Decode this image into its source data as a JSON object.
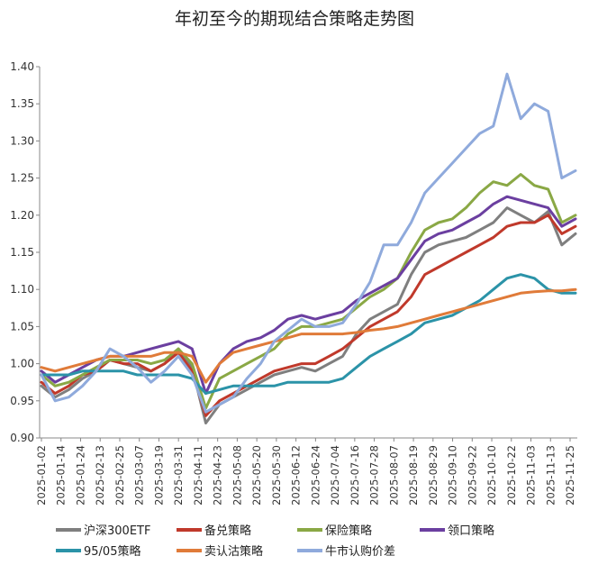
{
  "chart_data": {
    "type": "line",
    "title": "年初至今的期现结合策略走势图",
    "xlabel": "",
    "ylabel": "",
    "ylim": [
      0.9,
      1.4
    ],
    "yticks": [
      "0.90",
      "0.95",
      "1.00",
      "1.05",
      "1.10",
      "1.15",
      "1.20",
      "1.25",
      "1.30",
      "1.35",
      "1.40"
    ],
    "xticks": [
      "2025-01-02",
      "2025-01-14",
      "2025-01-24",
      "2025-02-13",
      "2025-02-25",
      "2025-03-07",
      "2025-03-19",
      "2025-03-31",
      "2025-04-11",
      "2025-04-23",
      "2025-05-08",
      "2025-05-20",
      "2025-05-30",
      "2025-06-12",
      "2025-06-24",
      "2025-07-04",
      "2025-07-16",
      "2025-07-28",
      "2025-08-07",
      "2025-08-19",
      "2025-08-29",
      "2025-09-10",
      "2025-09-22",
      "2025-10-10",
      "2025-10-22",
      "2025-11-03",
      "2025-11-13",
      "2025-11-25"
    ],
    "grid": false,
    "legend_position": "bottom",
    "series": [
      {
        "name": "沪深300ETF",
        "color": "#7f7f7f",
        "values": [
          0.97,
          0.955,
          0.965,
          0.98,
          0.99,
          1.005,
          1.0,
          0.995,
          0.99,
          1.0,
          1.02,
          0.995,
          0.92,
          0.945,
          0.955,
          0.965,
          0.975,
          0.985,
          0.99,
          0.995,
          0.99,
          1.0,
          1.01,
          1.04,
          1.06,
          1.07,
          1.08,
          1.12,
          1.15,
          1.16,
          1.165,
          1.17,
          1.18,
          1.19,
          1.21,
          1.2,
          1.19,
          1.205,
          1.16,
          1.175
        ]
      },
      {
        "name": "备兑策略",
        "color": "#c0392b",
        "values": [
          0.975,
          0.96,
          0.97,
          0.985,
          0.99,
          1.005,
          1.0,
          1.0,
          0.99,
          1.0,
          1.015,
          0.99,
          0.93,
          0.95,
          0.96,
          0.97,
          0.98,
          0.99,
          0.995,
          1.0,
          1.0,
          1.01,
          1.02,
          1.035,
          1.05,
          1.06,
          1.07,
          1.09,
          1.12,
          1.13,
          1.14,
          1.15,
          1.16,
          1.17,
          1.185,
          1.19,
          1.19,
          1.2,
          1.175,
          1.185
        ]
      },
      {
        "name": "保险策略",
        "color": "#8aa845",
        "values": [
          0.985,
          0.97,
          0.975,
          0.985,
          0.995,
          1.005,
          1.005,
          1.005,
          1.0,
          1.005,
          1.02,
          1.0,
          0.94,
          0.98,
          0.99,
          1.0,
          1.01,
          1.02,
          1.04,
          1.05,
          1.05,
          1.055,
          1.06,
          1.075,
          1.09,
          1.1,
          1.115,
          1.15,
          1.18,
          1.19,
          1.195,
          1.21,
          1.23,
          1.245,
          1.24,
          1.255,
          1.24,
          1.235,
          1.19,
          1.2
        ]
      },
      {
        "name": "领口策略",
        "color": "#6b3fa0",
        "values": [
          0.99,
          0.975,
          0.985,
          0.995,
          1.005,
          1.01,
          1.01,
          1.015,
          1.02,
          1.025,
          1.03,
          1.02,
          0.96,
          1.0,
          1.02,
          1.03,
          1.035,
          1.045,
          1.06,
          1.065,
          1.06,
          1.065,
          1.07,
          1.085,
          1.095,
          1.105,
          1.115,
          1.14,
          1.165,
          1.175,
          1.18,
          1.19,
          1.2,
          1.215,
          1.225,
          1.22,
          1.215,
          1.21,
          1.185,
          1.195
        ]
      },
      {
        "name": "95/05策略",
        "color": "#2b93a8",
        "values": [
          0.985,
          0.985,
          0.985,
          0.99,
          0.99,
          0.99,
          0.99,
          0.985,
          0.985,
          0.985,
          0.985,
          0.98,
          0.96,
          0.965,
          0.97,
          0.97,
          0.97,
          0.97,
          0.975,
          0.975,
          0.975,
          0.975,
          0.98,
          0.995,
          1.01,
          1.02,
          1.03,
          1.04,
          1.055,
          1.06,
          1.065,
          1.075,
          1.085,
          1.1,
          1.115,
          1.12,
          1.115,
          1.1,
          1.095,
          1.095
        ]
      },
      {
        "name": "卖认沽策略",
        "color": "#e07b39",
        "values": [
          0.995,
          0.99,
          0.995,
          1.0,
          1.005,
          1.01,
          1.01,
          1.01,
          1.01,
          1.015,
          1.015,
          1.01,
          0.975,
          1.0,
          1.015,
          1.02,
          1.025,
          1.03,
          1.035,
          1.04,
          1.04,
          1.04,
          1.04,
          1.042,
          1.045,
          1.047,
          1.05,
          1.055,
          1.06,
          1.065,
          1.07,
          1.075,
          1.08,
          1.085,
          1.09,
          1.095,
          1.097,
          1.098,
          1.098,
          1.1
        ]
      },
      {
        "name": "牛市认购价差",
        "color": "#8faadc",
        "values": [
          0.985,
          0.95,
          0.955,
          0.97,
          0.99,
          1.02,
          1.01,
          0.995,
          0.975,
          0.99,
          1.01,
          0.985,
          0.935,
          0.945,
          0.955,
          0.98,
          1.0,
          1.03,
          1.045,
          1.06,
          1.05,
          1.05,
          1.055,
          1.08,
          1.11,
          1.16,
          1.16,
          1.19,
          1.23,
          1.25,
          1.27,
          1.29,
          1.31,
          1.32,
          1.39,
          1.33,
          1.35,
          1.34,
          1.25,
          1.26
        ]
      }
    ]
  }
}
